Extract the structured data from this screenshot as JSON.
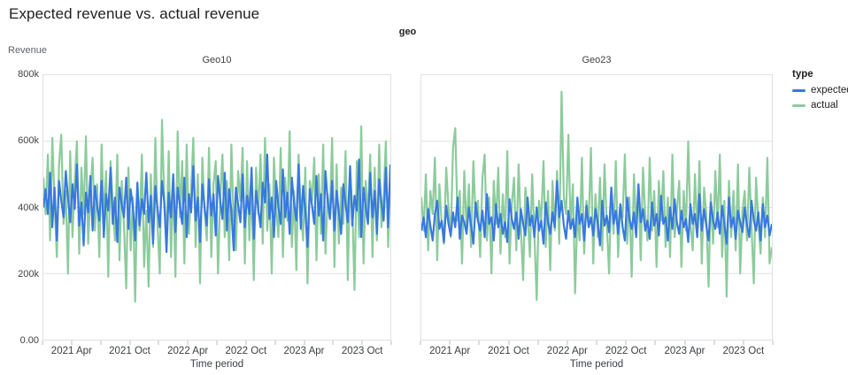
{
  "page": {
    "title": "Expected revenue vs. actual revenue"
  },
  "facet_field_label": "geo",
  "axes": {
    "y_title": "Revenue",
    "x_title": "Time period",
    "y_tick_labels": [
      "800k",
      "600k",
      "400k",
      "200k",
      "0.00"
    ],
    "y_tick_values_thousands": [
      800,
      600,
      400,
      200,
      0
    ],
    "x_tick_labels": [
      "2021 Apr",
      "2021 Oct",
      "2022 Apr",
      "2022 Oct",
      "2023 Apr",
      "2023 Oct"
    ],
    "x_label_months": [
      3,
      9,
      15,
      21,
      27,
      33
    ],
    "x_minor_tick_months": [
      0,
      3,
      6,
      9,
      12,
      15,
      18,
      21,
      24,
      27,
      30,
      33,
      36
    ],
    "x_span_months": 36
  },
  "legend": {
    "title": "type",
    "items": [
      {
        "label": "expected",
        "color": "#3778e0"
      },
      {
        "label": "actual",
        "color": "#8ccb9c"
      }
    ]
  },
  "colors": {
    "expected": "#3778e0",
    "actual": "#8ccb9c",
    "gridline": "#e2e2e2",
    "plot_border": "#e0e0e0",
    "title_text": "#202124",
    "axis_text": "#424242"
  },
  "chart_data": [
    {
      "type": "line",
      "facet": "Geo10",
      "title": "Geo10",
      "xlabel": "Time period",
      "ylabel": "Revenue",
      "x_unit": "weekly points, Jan 2021 - Dec 2023",
      "ylim_thousands": [
        0,
        800
      ],
      "grid": "horizontal-only",
      "legend_position": "right",
      "series": [
        {
          "name": "expected",
          "color": "#3778e0",
          "values_thousands": [
            400,
            455,
            380,
            505,
            340,
            460,
            300,
            480,
            420,
            370,
            510,
            430,
            355,
            470,
            395,
            530,
            345,
            415,
            285,
            445,
            385,
            495,
            330,
            465,
            405,
            360,
            480,
            310,
            440,
            390,
            520,
            350,
            430,
            295,
            460,
            410,
            370,
            490,
            335,
            455,
            400,
            300,
            475,
            345,
            425,
            380,
            505,
            355,
            435,
            290,
            465,
            395,
            340,
            480,
            415,
            265,
            445,
            370,
            500,
            325,
            460,
            405,
            350,
            490,
            310,
            440,
            385,
            525,
            360,
            430,
            295,
            470,
            400,
            345,
            485,
            375,
            440,
            315,
            495,
            420,
            365,
            505,
            330,
            455,
            390,
            270,
            460,
            410,
            355,
            500,
            340,
            435,
            380,
            520,
            305,
            450,
            395,
            340,
            475,
            415,
            560,
            365,
            430,
            310,
            480,
            400,
            350,
            515,
            370,
            445,
            320,
            490,
            410,
            360,
            530,
            335,
            465,
            390,
            280,
            455,
            405,
            350,
            495,
            375,
            440,
            300,
            510,
            420,
            365,
            480,
            330,
            450,
            385,
            320,
            470,
            410,
            355,
            525,
            345,
            435,
            390,
            545,
            310,
            460,
            400,
            350,
            505,
            370,
            450,
            320,
            485,
            415,
            360,
            520,
            340,
            530
          ]
        },
        {
          "name": "actual",
          "color": "#8ccb9c",
          "values_thousands": [
            490,
            380,
            560,
            300,
            610,
            420,
            250,
            530,
            620,
            350,
            450,
            200,
            570,
            310,
            480,
            600,
            260,
            520,
            380,
            615,
            290,
            440,
            550,
            330,
            470,
            250,
            590,
            360,
            510,
            190,
            540,
            410,
            300,
            560,
            240,
            480,
            350,
            155,
            520,
            270,
            430,
            115,
            470,
            330,
            560,
            220,
            390,
            160,
            500,
            280,
            610,
            345,
            200,
            665,
            420,
            310,
            570,
            250,
            480,
            190,
            630,
            370,
            540,
            230,
            590,
            320,
            450,
            610,
            280,
            500,
            170,
            550,
            390,
            300,
            580,
            250,
            470,
            540,
            200,
            430,
            560,
            310,
            480,
            240,
            590,
            350,
            270,
            510,
            420,
            580,
            230,
            540,
            300,
            460,
            180,
            520,
            380,
            560,
            290,
            610,
            330,
            470,
            200,
            550,
            400,
            310,
            580,
            250,
            490,
            360,
            630,
            280,
            450,
            210,
            560,
            390,
            300,
            520,
            170,
            480,
            420,
            550,
            240,
            500,
            320,
            590,
            260,
            440,
            380,
            610,
            220,
            530,
            290,
            460,
            350,
            570,
            180,
            510,
            400,
            150,
            540,
            310,
            645,
            230,
            480,
            370,
            560,
            250,
            520,
            300,
            590,
            340,
            430,
            600,
            280,
            510
          ]
        }
      ]
    },
    {
      "type": "line",
      "facet": "Geo23",
      "title": "Geo23",
      "xlabel": "Time period",
      "ylabel": "Revenue",
      "x_unit": "weekly points, Jan 2021 - Dec 2023",
      "ylim_thousands": [
        0,
        800
      ],
      "grid": "horizontal-only",
      "legend_position": "right",
      "series": [
        {
          "name": "expected",
          "color": "#3778e0",
          "values_thousands": [
            330,
            370,
            310,
            395,
            345,
            300,
            380,
            420,
            335,
            360,
            295,
            405,
            350,
            315,
            385,
            340,
            430,
            305,
            375,
            355,
            320,
            400,
            345,
            290,
            415,
            360,
            330,
            390,
            310,
            440,
            350,
            370,
            300,
            410,
            340,
            380,
            320,
            355,
            295,
            425,
            365,
            335,
            385,
            305,
            395,
            350,
            315,
            430,
            345,
            375,
            310,
            400,
            330,
            360,
            290,
            415,
            355,
            320,
            385,
            340,
            480,
            370,
            420,
            345,
            305,
            390,
            335,
            365,
            310,
            430,
            350,
            380,
            300,
            405,
            340,
            370,
            315,
            395,
            355,
            285,
            420,
            345,
            375,
            325,
            460,
            350,
            390,
            320,
            410,
            340,
            300,
            430,
            365,
            335,
            385,
            310,
            470,
            355,
            395,
            330,
            360,
            305,
            415,
            345,
            380,
            315,
            435,
            350,
            370,
            300,
            400,
            335,
            425,
            355,
            320,
            390,
            340,
            365,
            295,
            410,
            350,
            380,
            310,
            440,
            330,
            395,
            345,
            300,
            415,
            360,
            335,
            385,
            320,
            405,
            350,
            290,
            430,
            340,
            370,
            305,
            390,
            355,
            325,
            400,
            345,
            310,
            420,
            360,
            330,
            385,
            300,
            410,
            340,
            375,
            315,
            350
          ]
        },
        {
          "name": "actual",
          "color": "#8ccb9c",
          "values_thousands": [
            430,
            330,
            500,
            270,
            450,
            380,
            550,
            240,
            470,
            350,
            290,
            520,
            400,
            310,
            580,
            640,
            360,
            450,
            230,
            510,
            330,
            470,
            280,
            540,
            370,
            420,
            250,
            490,
            560,
            300,
            430,
            200,
            480,
            350,
            520,
            260,
            440,
            310,
            570,
            230,
            410,
            490,
            270,
            530,
            340,
            180,
            460,
            380,
            250,
            500,
            320,
            120,
            420,
            360,
            540,
            280,
            450,
            210,
            480,
            330,
            510,
            290,
            750,
            430,
            380,
            620,
            340,
            470,
            140,
            390,
            300,
            550,
            260,
            420,
            360,
            580,
            230,
            440,
            310,
            490,
            270,
            530,
            350,
            200,
            460,
            320,
            540,
            250,
            410,
            370,
            560,
            290,
            430,
            190,
            500,
            340,
            470,
            240,
            520,
            380,
            300,
            550,
            330,
            450,
            220,
            480,
            360,
            510,
            280,
            430,
            250,
            560,
            310,
            390,
            480,
            220,
            450,
            330,
            600,
            350,
            270,
            500,
            320,
            540,
            230,
            460,
            380,
            160,
            440,
            290,
            510,
            340,
            560,
            250,
            420,
            130,
            480,
            310,
            450,
            270,
            530,
            200,
            390,
            450,
            300,
            520,
            340,
            170,
            490,
            360,
            260,
            430,
            310,
            550,
            230,
            280
          ]
        }
      ]
    }
  ]
}
